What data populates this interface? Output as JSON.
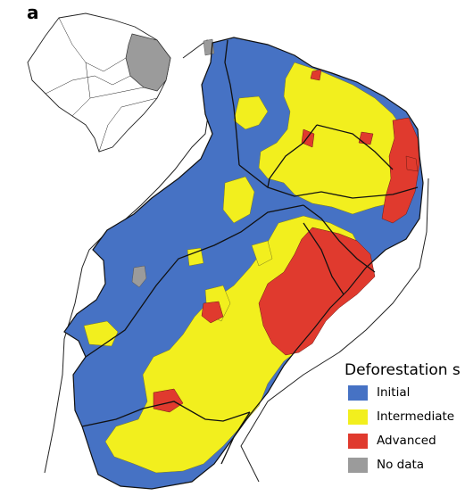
{
  "panel_label": "a",
  "colors": {
    "initial": "#4672c4",
    "intermediate": "#f2ef1e",
    "advanced": "#e03a2e",
    "no_data": "#9b9b9b",
    "border": "#1a1a1a",
    "municipality_line": "#3d3d3d"
  },
  "legend": {
    "title": "Deforestation s",
    "items": [
      {
        "label": "Initial",
        "color": "#4672c4"
      },
      {
        "label": "Intermediate",
        "color": "#f2ef1e"
      },
      {
        "label": "Advanced",
        "color": "#e03a2e"
      },
      {
        "label": "No data",
        "color": "#9b9b9b"
      }
    ]
  }
}
